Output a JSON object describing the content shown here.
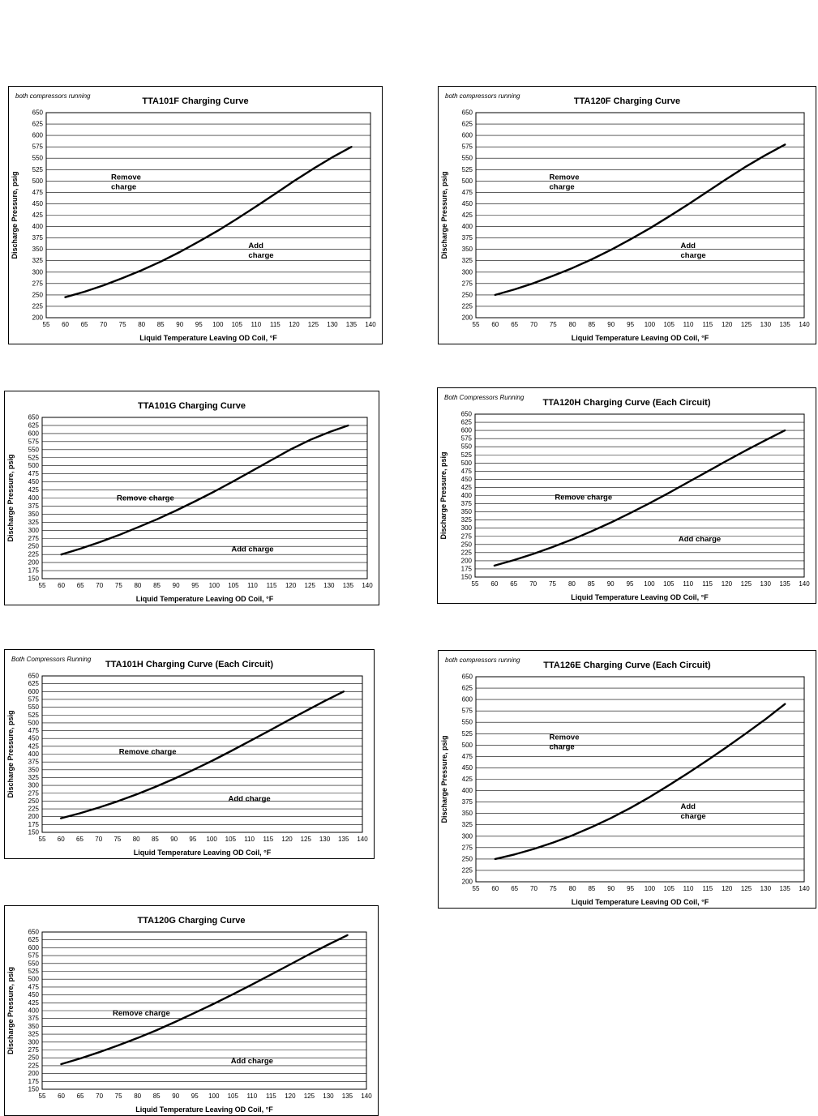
{
  "page": {
    "background": "#ffffff",
    "curve_color": "#000000"
  },
  "chart_data": [
    {
      "type": "line",
      "title": "TTA101F Charging Curve",
      "note": "both compressors running",
      "ylabel": "Discharge Pressure, psig",
      "xlabel": "Liquid Temperature Leaving OD Coil, °F",
      "xlim": [
        55,
        140
      ],
      "xstep": 5,
      "ylim": [
        200,
        650
      ],
      "ystep": 25,
      "grid": "horizontal",
      "series": [
        {
          "name": "charging-curve",
          "x": [
            60,
            65,
            70,
            75,
            80,
            85,
            90,
            95,
            100,
            105,
            110,
            115,
            120,
            125,
            130,
            135
          ],
          "y": [
            245,
            257,
            271,
            287,
            304,
            323,
            344,
            367,
            391,
            417,
            444,
            472,
            500,
            527,
            552,
            575
          ]
        }
      ],
      "annotations": [
        {
          "lines": [
            "Remove",
            "charge"
          ],
          "x": 72,
          "y": 503
        },
        {
          "lines": [
            "Add",
            "charge"
          ],
          "x": 108,
          "y": 353
        }
      ]
    },
    {
      "type": "line",
      "title": "TTA120F Charging Curve",
      "note": "both compressors running",
      "ylabel": "Discharge Pressure, psig",
      "xlabel": "Liquid Temperature Leaving OD Coil, °F",
      "xlim": [
        55,
        140
      ],
      "xstep": 5,
      "ylim": [
        200,
        650
      ],
      "ystep": 25,
      "grid": "horizontal",
      "series": [
        {
          "name": "charging-curve",
          "x": [
            60,
            65,
            70,
            75,
            80,
            85,
            90,
            95,
            100,
            105,
            110,
            115,
            120,
            125,
            130,
            135
          ],
          "y": [
            250,
            262,
            276,
            292,
            309,
            328,
            349,
            372,
            396,
            422,
            449,
            477,
            505,
            532,
            557,
            580
          ]
        }
      ],
      "annotations": [
        {
          "lines": [
            "Remove",
            "charge"
          ],
          "x": 74,
          "y": 503
        },
        {
          "lines": [
            "Add",
            "charge"
          ],
          "x": 108,
          "y": 353
        }
      ]
    },
    {
      "type": "line",
      "title": "TTA101G Charging Curve",
      "note": null,
      "ylabel": "Discharge Pressure,  psig",
      "xlabel": "Liquid Temperature Leaving OD Coil, °F",
      "xlim": [
        55,
        140
      ],
      "xstep": 5,
      "ylim": [
        150,
        650
      ],
      "ystep": 25,
      "grid": "horizontal",
      "series": [
        {
          "name": "charging-curve",
          "x": [
            60,
            65,
            70,
            75,
            80,
            85,
            90,
            95,
            100,
            105,
            110,
            115,
            120,
            125,
            130,
            135
          ],
          "y": [
            225,
            243,
            263,
            285,
            309,
            334,
            361,
            390,
            420,
            452,
            485,
            518,
            551,
            580,
            604,
            625
          ]
        }
      ],
      "annotations": [
        {
          "lines": [
            "Remove charge"
          ],
          "x": 82,
          "y": 392
        },
        {
          "lines": [
            "Add charge"
          ],
          "x": 110,
          "y": 234
        }
      ]
    },
    {
      "type": "line",
      "title": "TTA120H Charging Curve (Each Circuit)",
      "note": "Both Compressors Running",
      "ylabel": "Discharge Pressure,  psig",
      "xlabel": "Liquid Temperature Leaving OD Coil, °F",
      "xlim": [
        55,
        140
      ],
      "xstep": 5,
      "ylim": [
        150,
        650
      ],
      "ystep": 25,
      "grid": "horizontal",
      "series": [
        {
          "name": "charging-curve",
          "x": [
            60,
            65,
            70,
            75,
            80,
            85,
            90,
            95,
            100,
            105,
            110,
            115,
            120,
            125,
            130,
            135
          ],
          "y": [
            185,
            202,
            221,
            242,
            265,
            290,
            317,
            346,
            376,
            408,
            441,
            474,
            507,
            539,
            570,
            600
          ]
        }
      ],
      "annotations": [
        {
          "lines": [
            "Remove charge"
          ],
          "x": 83,
          "y": 388
        },
        {
          "lines": [
            "Add charge"
          ],
          "x": 113,
          "y": 260
        }
      ]
    },
    {
      "type": "line",
      "title": "TTA101H Charging Curve (Each Circuit)",
      "note": "Both Compressors Running",
      "ylabel": "Discharge Pressure,  psig",
      "xlabel": "Liquid Temperature Leaving OD Coil, °F",
      "xlim": [
        55,
        140
      ],
      "xstep": 5,
      "ylim": [
        150,
        650
      ],
      "ystep": 25,
      "grid": "horizontal",
      "series": [
        {
          "name": "charging-curve",
          "x": [
            60,
            65,
            70,
            75,
            80,
            85,
            90,
            95,
            100,
            105,
            110,
            115,
            120,
            125,
            130,
            135
          ],
          "y": [
            195,
            211,
            229,
            249,
            271,
            295,
            321,
            349,
            378,
            409,
            441,
            473,
            506,
            538,
            570,
            600
          ]
        }
      ],
      "annotations": [
        {
          "lines": [
            "Remove charge"
          ],
          "x": 83,
          "y": 400
        },
        {
          "lines": [
            "Add charge"
          ],
          "x": 110,
          "y": 250
        }
      ]
    },
    {
      "type": "line",
      "title": "TTA126E Charging Curve (Each Circuit)",
      "note": "both compressors running",
      "ylabel": "Discharge Pressure, psig",
      "xlabel": "Liquid Temperature Leaving OD Coil, °F",
      "xlim": [
        55,
        140
      ],
      "xstep": 5,
      "ylim": [
        200,
        650
      ],
      "ystep": 25,
      "grid": "horizontal",
      "series": [
        {
          "name": "charging-curve",
          "x": [
            60,
            65,
            70,
            75,
            80,
            85,
            90,
            95,
            100,
            105,
            110,
            115,
            120,
            125,
            130,
            135
          ],
          "y": [
            250,
            260,
            272,
            286,
            302,
            320,
            340,
            362,
            386,
            412,
            439,
            467,
            496,
            526,
            557,
            590
          ]
        }
      ],
      "annotations": [
        {
          "lines": [
            "Remove",
            "charge"
          ],
          "x": 74,
          "y": 512
        },
        {
          "lines": [
            "Add",
            "charge"
          ],
          "x": 108,
          "y": 360
        }
      ]
    },
    {
      "type": "line",
      "title": "TTA120G Charging Curve",
      "note": null,
      "ylabel": "Discharge Pressure,  psig",
      "xlabel": "Liquid Temperature Leaving OD Coil, °F",
      "xlim": [
        55,
        140
      ],
      "xstep": 5,
      "ylim": [
        150,
        650
      ],
      "ystep": 25,
      "grid": "horizontal",
      "series": [
        {
          "name": "charging-curve",
          "x": [
            60,
            65,
            70,
            75,
            80,
            85,
            90,
            95,
            100,
            105,
            110,
            115,
            120,
            125,
            130,
            135
          ],
          "y": [
            230,
            248,
            268,
            290,
            313,
            338,
            365,
            393,
            422,
            452,
            483,
            515,
            547,
            579,
            610,
            640
          ]
        }
      ],
      "annotations": [
        {
          "lines": [
            "Remove charge"
          ],
          "x": 81,
          "y": 384
        },
        {
          "lines": [
            "Add charge"
          ],
          "x": 110,
          "y": 233
        }
      ]
    }
  ]
}
